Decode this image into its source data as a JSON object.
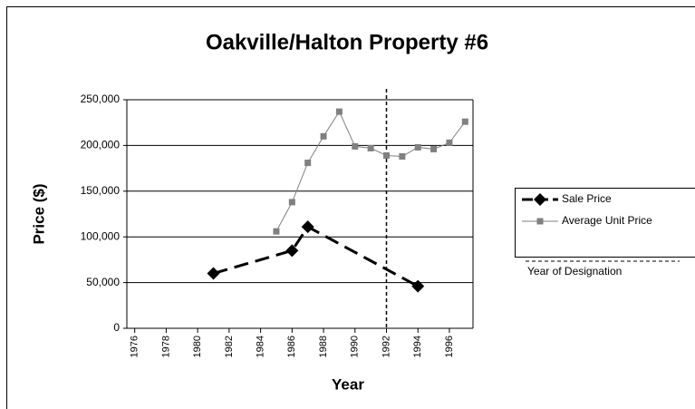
{
  "chart_data": {
    "type": "line",
    "title": "Oakville/Halton Property #6",
    "x_label": "Year",
    "y_label": "Price ($)",
    "series": [
      {
        "name": "Sale Price",
        "color": "#000000",
        "marker": "diamond",
        "dashed": true,
        "x": [
          1981,
          1986,
          1987,
          1994
        ],
        "values": [
          60000,
          85000,
          111000,
          46000
        ]
      },
      {
        "name": "Average Unit Price",
        "color": "#808080",
        "marker": "square",
        "dashed": false,
        "x": [
          1985,
          1986,
          1987,
          1988,
          1989,
          1990,
          1991,
          1992,
          1993,
          1994,
          1995,
          1996,
          1997
        ],
        "values": [
          106000,
          138000,
          181000,
          210000,
          237000,
          199000,
          197000,
          189000,
          188000,
          198000,
          196000,
          203000,
          226000
        ]
      }
    ],
    "designation": {
      "name": "Year of Designation",
      "x": 1992
    },
    "xlim": [
      1975.5,
      1997.5
    ],
    "xticks": [
      1976,
      1978,
      1980,
      1982,
      1984,
      1986,
      1988,
      1990,
      1992,
      1994,
      1996
    ],
    "ylim": [
      0,
      250000
    ],
    "yticks": [
      0,
      {
        "value": 50000,
        "label": "50,000"
      },
      {
        "value": 100000,
        "label": "100,000"
      },
      {
        "value": 150000,
        "label": "150,000"
      },
      {
        "value": 200000,
        "label": "200,000"
      },
      {
        "value": 250000,
        "label": "250,000"
      }
    ],
    "grid": true,
    "legend": "right"
  }
}
